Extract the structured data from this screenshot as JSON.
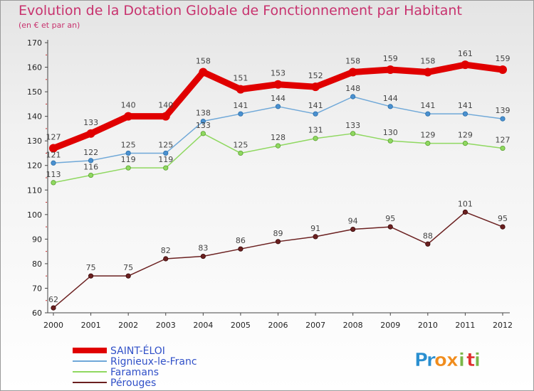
{
  "title": "Evolution de la Dotation Globale de Fonctionnement par Habitant",
  "subtitle": "(en € et par an)",
  "logo": {
    "letters": [
      "P",
      "r",
      "o",
      "x",
      "i",
      "t",
      "i"
    ],
    "colors": [
      "#2a8fd0",
      "#2a8fd0",
      "#f08c1c",
      "#f08c1c",
      "#7ab648",
      "#e03030",
      "#7ab648"
    ]
  },
  "chart_data": {
    "type": "line",
    "title": "Evolution de la Dotation Globale de Fonctionnement par Habitant",
    "subtitle": "(en € et par an)",
    "xlabel": "",
    "ylabel": "",
    "ylim": [
      60,
      170
    ],
    "yticks": [
      60,
      70,
      80,
      90,
      100,
      110,
      120,
      130,
      140,
      150,
      160,
      170
    ],
    "x": [
      "2000",
      "2001",
      "2002",
      "2003",
      "2004",
      "2005",
      "2006",
      "2007",
      "2008",
      "2009",
      "2010",
      "2011",
      "2012"
    ],
    "grid": false,
    "legend_position": "bottom-left",
    "series": [
      {
        "name": "SAINT-ÉLOI",
        "color": "#e00000",
        "width": 9,
        "values": [
          127,
          133,
          140,
          140,
          158,
          151,
          153,
          152,
          158,
          159,
          158,
          161,
          159
        ]
      },
      {
        "name": "Rignieux-le-Franc",
        "color": "#6fa8d8",
        "width": 1.5,
        "values": [
          121,
          122,
          125,
          125,
          138,
          141,
          144,
          141,
          148,
          144,
          141,
          141,
          139
        ]
      },
      {
        "name": "Faramans",
        "color": "#8fd860",
        "width": 1.5,
        "values": [
          113,
          116,
          119,
          119,
          133,
          125,
          128,
          131,
          133,
          130,
          129,
          129,
          127
        ]
      },
      {
        "name": "Pérouges",
        "color": "#6b2020",
        "width": 1.5,
        "values": [
          62,
          75,
          75,
          82,
          83,
          86,
          89,
          91,
          94,
          95,
          88,
          101,
          95
        ]
      }
    ]
  }
}
